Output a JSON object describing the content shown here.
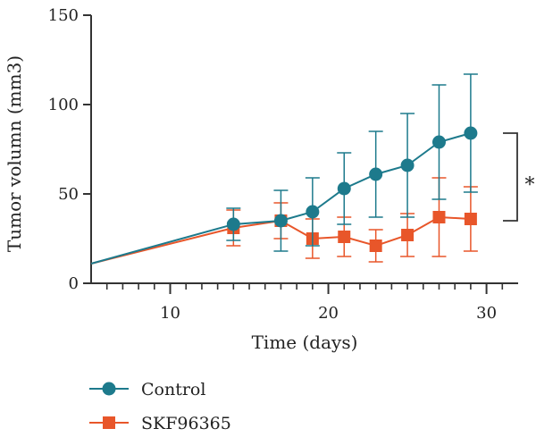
{
  "chart_data": {
    "type": "line",
    "xlabel": "Time (days)",
    "ylabel": "Tumor volumn (mm3)",
    "xlim": [
      5,
      32
    ],
    "ylim": [
      0,
      150
    ],
    "x_ticks": [
      10,
      20,
      30
    ],
    "x_minor_ticks": [
      6,
      7,
      8,
      9,
      11,
      12,
      13,
      14,
      15,
      16,
      17,
      18,
      19,
      21,
      22,
      23,
      24,
      25,
      26,
      27,
      28,
      29,
      31
    ],
    "y_ticks": [
      0,
      50,
      100,
      150
    ],
    "grid": false,
    "legend_position": "bottom-left",
    "series": [
      {
        "name": "Control",
        "color": "#1d7a8c",
        "marker": "circle",
        "points": [
          {
            "x": 5,
            "y": 11
          },
          {
            "x": 14,
            "y": 33,
            "err": 9
          },
          {
            "x": 17,
            "y": 35,
            "err": 17
          },
          {
            "x": 19,
            "y": 40,
            "err": 19
          },
          {
            "x": 21,
            "y": 53,
            "err": 20
          },
          {
            "x": 23,
            "y": 61,
            "err": 24
          },
          {
            "x": 25,
            "y": 66,
            "err": 29
          },
          {
            "x": 27,
            "y": 79,
            "err": 32
          },
          {
            "x": 29,
            "y": 84,
            "err": 33
          }
        ]
      },
      {
        "name": "SKF96365",
        "color": "#e8562a",
        "marker": "square",
        "points": [
          {
            "x": 5,
            "y": 11
          },
          {
            "x": 14,
            "y": 31,
            "err": 10
          },
          {
            "x": 17,
            "y": 35,
            "err": 10
          },
          {
            "x": 19,
            "y": 25,
            "err": 11
          },
          {
            "x": 21,
            "y": 26,
            "err": 11
          },
          {
            "x": 23,
            "y": 21,
            "err": 9
          },
          {
            "x": 25,
            "y": 27,
            "err": 12
          },
          {
            "x": 27,
            "y": 37,
            "err": 22
          },
          {
            "x": 29,
            "y": 36,
            "err": 18
          }
        ]
      }
    ],
    "annotations": [
      {
        "type": "bracket",
        "text": "*",
        "y_from": 35,
        "y_to": 84
      }
    ]
  }
}
